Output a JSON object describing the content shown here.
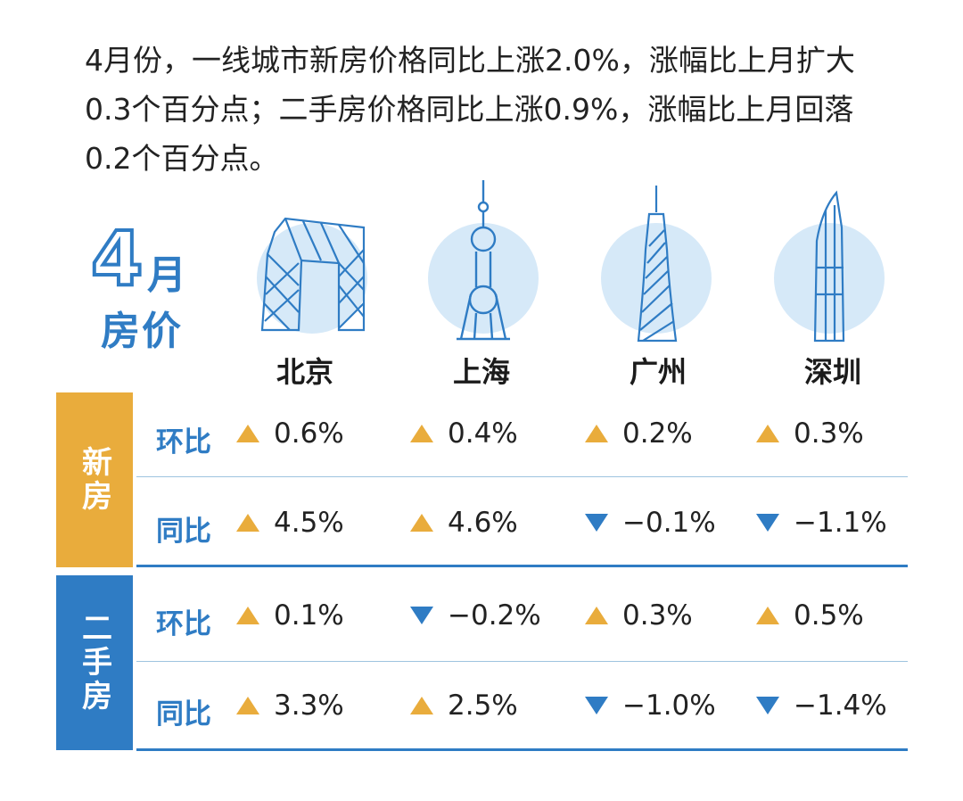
{
  "intro": {
    "lines": [
      "4月份，一线城市新房价格同比上涨2.0%，涨幅比上月扩大",
      "0.3个百分点；二手房价格同比上涨0.9%，涨幅比上月回落",
      "0.2个百分点。"
    ]
  },
  "title": {
    "number": "4",
    "month": "月",
    "subtitle": "房价"
  },
  "cities": [
    {
      "name": "北京",
      "icon": "cctv-tower-icon"
    },
    {
      "name": "上海",
      "icon": "oriental-pearl-tower-icon"
    },
    {
      "name": "广州",
      "icon": "canton-tower-icon"
    },
    {
      "name": "深圳",
      "icon": "ping-an-tower-icon"
    }
  ],
  "sections": [
    {
      "label": "新房",
      "rows": [
        {
          "label": "环比",
          "values": [
            {
              "text": "0.6%",
              "dir": "up"
            },
            {
              "text": "0.4%",
              "dir": "up"
            },
            {
              "text": "0.2%",
              "dir": "up"
            },
            {
              "text": "0.3%",
              "dir": "up"
            }
          ]
        },
        {
          "label": "同比",
          "values": [
            {
              "text": "4.5%",
              "dir": "up"
            },
            {
              "text": "4.6%",
              "dir": "up"
            },
            {
              "text": "−0.1%",
              "dir": "down"
            },
            {
              "text": "−1.1%",
              "dir": "down"
            }
          ]
        }
      ]
    },
    {
      "label": "二手房",
      "rows": [
        {
          "label": "环比",
          "values": [
            {
              "text": "0.1%",
              "dir": "up"
            },
            {
              "text": "−0.2%",
              "dir": "down"
            },
            {
              "text": "0.3%",
              "dir": "up"
            },
            {
              "text": "0.5%",
              "dir": "up"
            }
          ]
        },
        {
          "label": "同比",
          "values": [
            {
              "text": "3.3%",
              "dir": "up"
            },
            {
              "text": "2.5%",
              "dir": "up"
            },
            {
              "text": "−1.0%",
              "dir": "down"
            },
            {
              "text": "−1.4%",
              "dir": "down"
            }
          ]
        }
      ]
    }
  ],
  "colors": {
    "up": "#e9ac3c",
    "down": "#2f7cc4",
    "circle": "#d6e9f8",
    "line": "#2f7cc4"
  }
}
